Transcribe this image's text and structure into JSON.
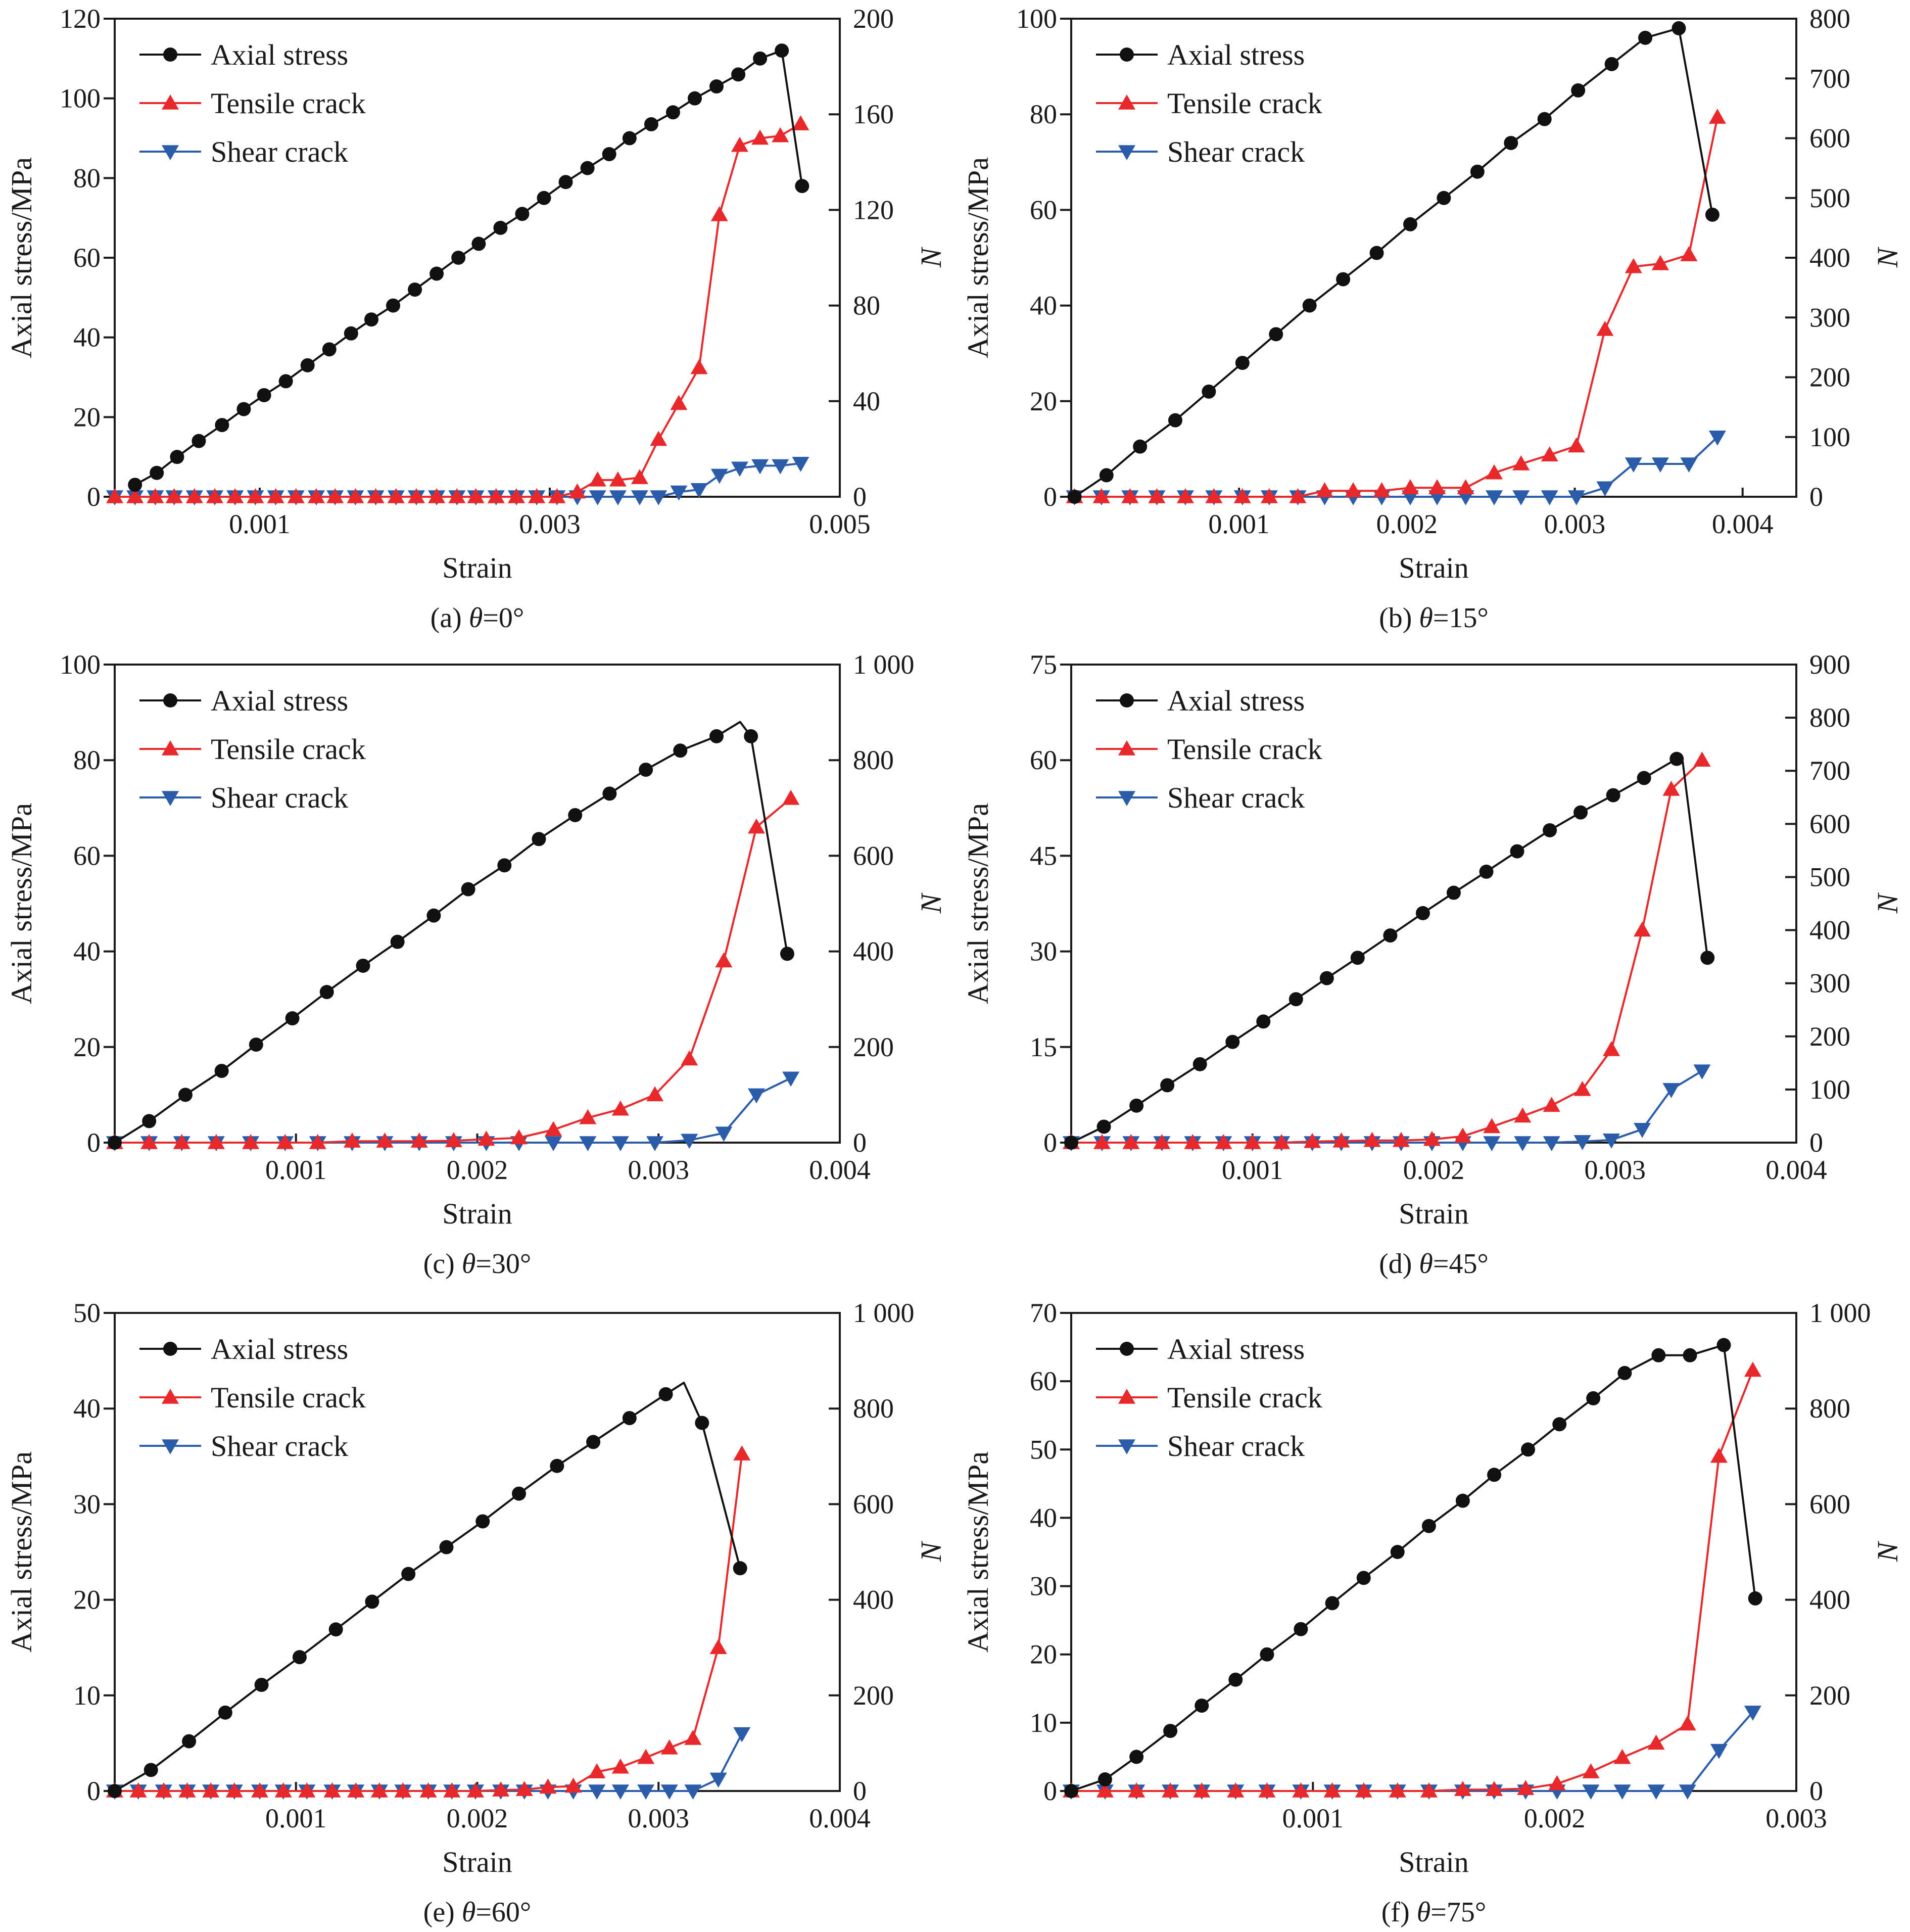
{
  "figure": {
    "xlabel": "Strain",
    "ylabel": "Axial stress/MPa",
    "y2label": "N",
    "theta_symbol": "θ",
    "legend": {
      "axial": "Axial stress",
      "tensile": "Tensile crack",
      "shear": "Shear crack"
    },
    "colors": {
      "axial": "#111111",
      "tensile": "#e8282b",
      "shear": "#2a5caa"
    },
    "markers": {
      "axial": "circle",
      "tensile": "triangle-up",
      "shear": "triangle-down"
    }
  },
  "chart_data": [
    {
      "type": "line",
      "caption_label": "(a)",
      "caption_value": "=0°",
      "xlim": [
        0,
        0.005
      ],
      "ylim": [
        0,
        120
      ],
      "y2lim": [
        0,
        200
      ],
      "xticks": [
        0.001,
        0.003,
        0.005
      ],
      "xtick_labels": [
        "0.001",
        "0.003",
        "0.005"
      ],
      "yticks": [
        0,
        20,
        40,
        60,
        80,
        100,
        120
      ],
      "ytick_labels": [
        "0",
        "20",
        "40",
        "60",
        "80",
        "100",
        "120"
      ],
      "y2ticks": [
        0,
        40,
        80,
        120,
        160,
        200
      ],
      "y2tick_labels": [
        "0",
        "40",
        "80",
        "120",
        "160",
        "200"
      ],
      "legend_position": "top-left",
      "grid": false,
      "axial": {
        "strain": [
          0.00014,
          0.00029,
          0.00043,
          0.00058,
          0.00074,
          0.00089,
          0.00103,
          0.00118,
          0.00133,
          0.00148,
          0.00163,
          0.00177,
          0.00192,
          0.00207,
          0.00222,
          0.00237,
          0.00251,
          0.00266,
          0.00281,
          0.00296,
          0.00311,
          0.00326,
          0.00341,
          0.00355,
          0.0037,
          0.00385,
          0.004,
          0.00415,
          0.0043,
          0.00445,
          0.0046,
          0.00474
        ],
        "stress": [
          3,
          6,
          10,
          14,
          18,
          22,
          25.5,
          29,
          33,
          37,
          41,
          44.5,
          48,
          52,
          56,
          60,
          63.5,
          67.5,
          71,
          75,
          79,
          82.5,
          86,
          90,
          93.5,
          96.5,
          100,
          103,
          106,
          110,
          112,
          78
        ]
      },
      "crack_strain": [
        0,
        0.00014,
        0.00028,
        0.00041,
        0.00055,
        0.00069,
        0.00083,
        0.00097,
        0.00111,
        0.00125,
        0.00139,
        0.00152,
        0.00166,
        0.0018,
        0.00194,
        0.00208,
        0.00222,
        0.00236,
        0.00249,
        0.00263,
        0.00277,
        0.00291,
        0.00305,
        0.00319,
        0.00333,
        0.00347,
        0.00362,
        0.00375,
        0.00389,
        0.00403,
        0.00417,
        0.00431,
        0.00445,
        0.00459,
        0.00473
      ],
      "tensile": [
        0,
        0,
        0,
        0,
        0,
        0,
        0,
        0,
        0,
        0,
        0,
        0,
        0,
        0,
        0,
        0,
        0,
        0,
        0,
        0,
        0,
        0,
        0,
        2,
        7,
        7,
        8,
        24,
        39,
        54,
        118,
        147,
        150,
        151,
        156
      ],
      "shear": [
        0,
        0,
        0,
        0,
        0,
        0,
        0,
        0,
        0,
        0,
        0,
        0,
        0,
        0,
        0,
        0,
        0,
        0,
        0,
        0,
        0,
        0,
        0,
        0,
        0,
        0,
        0,
        0,
        2,
        3,
        9,
        12,
        13,
        13,
        14
      ]
    },
    {
      "type": "line",
      "caption_label": "(b)",
      "caption_value": "=15°",
      "xlim": [
        0,
        0.00432
      ],
      "ylim": [
        0,
        100
      ],
      "y2lim": [
        0,
        800
      ],
      "xticks": [
        0.001,
        0.002,
        0.003,
        0.004
      ],
      "xtick_labels": [
        "0.001",
        "0.002",
        "0.003",
        "0.004"
      ],
      "yticks": [
        0,
        20,
        40,
        60,
        80,
        100
      ],
      "ytick_labels": [
        "0",
        "20",
        "40",
        "60",
        "80",
        "100"
      ],
      "y2ticks": [
        0,
        100,
        200,
        300,
        400,
        500,
        600,
        700,
        800
      ],
      "y2tick_labels": [
        "0",
        "100",
        "200",
        "300",
        "400",
        "500",
        "600",
        "700",
        "800"
      ],
      "legend_position": "top-left",
      "grid": false,
      "axial": {
        "strain": [
          2e-05,
          0.00021,
          0.00041,
          0.00062,
          0.00082,
          0.00102,
          0.00122,
          0.00142,
          0.00162,
          0.00182,
          0.00202,
          0.00222,
          0.00242,
          0.00262,
          0.00282,
          0.00302,
          0.00322,
          0.00342,
          0.00362,
          0.00382
        ],
        "stress": [
          0,
          4.5,
          10.5,
          16,
          22,
          28,
          34,
          40,
          45.5,
          51,
          57,
          62.5,
          68,
          74,
          79,
          85,
          90.5,
          96,
          98,
          59
        ]
      },
      "crack_strain": [
        2e-05,
        0.00018,
        0.00035,
        0.00051,
        0.00068,
        0.00085,
        0.00102,
        0.00118,
        0.00135,
        0.00151,
        0.00168,
        0.00185,
        0.00202,
        0.00218,
        0.00235,
        0.00252,
        0.00268,
        0.00285,
        0.00301,
        0.00318,
        0.00335,
        0.00351,
        0.00368,
        0.00385
      ],
      "tensile": [
        0,
        0,
        0,
        0,
        0,
        0,
        0,
        0,
        0,
        10,
        10,
        10,
        15,
        15,
        15,
        40,
        55,
        70,
        85,
        280,
        385,
        390,
        405,
        635
      ],
      "shear": [
        0,
        0,
        0,
        0,
        0,
        0,
        0,
        0,
        0,
        0,
        0,
        0,
        0,
        0,
        0,
        0,
        0,
        0,
        0,
        15,
        55,
        55,
        55,
        100
      ]
    },
    {
      "type": "line",
      "caption_label": "(c)",
      "caption_value": "=30°",
      "xlim": [
        0,
        0.004
      ],
      "ylim": [
        0,
        100
      ],
      "y2lim": [
        0,
        1000
      ],
      "xticks": [
        0.001,
        0.002,
        0.003,
        0.004
      ],
      "xtick_labels": [
        "0.001",
        "0.002",
        "0.003",
        "0.004"
      ],
      "yticks": [
        0,
        20,
        40,
        60,
        80,
        100
      ],
      "ytick_labels": [
        "0",
        "20",
        "40",
        "60",
        "80",
        "100"
      ],
      "y2ticks": [
        0,
        200,
        400,
        600,
        800,
        1000
      ],
      "y2tick_labels": [
        "0",
        "200",
        "400",
        "600",
        "800",
        "1 000"
      ],
      "legend_position": "top-left",
      "grid": false,
      "axial": {
        "strain": [
          0,
          0.00019,
          0.00039,
          0.00059,
          0.00078,
          0.00098,
          0.00117,
          0.00137,
          0.00156,
          0.00176,
          0.00195,
          0.00215,
          0.00234,
          0.00254,
          0.00273,
          0.00293,
          0.00312,
          0.00332,
          0.00351,
          0.00371
        ],
        "stress": [
          0,
          4.5,
          10,
          15,
          20.5,
          26,
          31.5,
          37,
          42,
          47.5,
          53,
          58,
          63.5,
          68.5,
          73,
          78,
          82,
          85,
          85,
          39.5
        ],
        "peak": [
          0.00345,
          88
        ]
      },
      "crack_strain": [
        0,
        0.00019,
        0.00037,
        0.00056,
        0.00075,
        0.00094,
        0.00112,
        0.00131,
        0.00149,
        0.00168,
        0.00187,
        0.00205,
        0.00223,
        0.00242,
        0.00261,
        0.00279,
        0.00298,
        0.00317,
        0.00336,
        0.00354,
        0.00373
      ],
      "tensile": [
        0,
        0,
        0,
        0,
        0,
        0,
        0,
        3,
        3,
        3,
        4,
        7,
        10,
        27,
        52,
        70,
        100,
        175,
        380,
        660,
        720
      ],
      "shear": [
        0,
        0,
        0,
        0,
        0,
        0,
        0,
        0,
        0,
        0,
        0,
        0,
        0,
        0,
        0,
        0,
        0,
        5,
        20,
        100,
        135
      ]
    },
    {
      "type": "line",
      "caption_label": "(d)",
      "caption_value": "=45°",
      "xlim": [
        0,
        0.004
      ],
      "ylim": [
        0,
        75
      ],
      "y2lim": [
        0,
        900
      ],
      "xticks": [
        0.001,
        0.002,
        0.003,
        0.004
      ],
      "xtick_labels": [
        "0.001",
        "0.002",
        "0.003",
        "0.004"
      ],
      "yticks": [
        0,
        15,
        30,
        45,
        60,
        75
      ],
      "ytick_labels": [
        "0",
        "15",
        "30",
        "45",
        "60",
        "75"
      ],
      "y2ticks": [
        0,
        100,
        200,
        300,
        400,
        500,
        600,
        700,
        800,
        900
      ],
      "y2tick_labels": [
        "0",
        "100",
        "200",
        "300",
        "400",
        "500",
        "600",
        "700",
        "800",
        "900"
      ],
      "legend_position": "top-left",
      "grid": false,
      "axial": {
        "strain": [
          0,
          0.00018,
          0.00036,
          0.00053,
          0.00071,
          0.00089,
          0.00106,
          0.00124,
          0.00141,
          0.00158,
          0.00176,
          0.00194,
          0.00211,
          0.00229,
          0.00246,
          0.00264,
          0.00281,
          0.00299,
          0.00316,
          0.00334,
          0.00351
        ],
        "stress": [
          0,
          2.5,
          5.8,
          9,
          12.3,
          15.8,
          19,
          22.5,
          25.8,
          29,
          32.5,
          36,
          39.2,
          42.5,
          45.7,
          49,
          51.8,
          54.5,
          57.2,
          60.2,
          29
        ],
        "peak": [
          0.00337,
          60.5
        ]
      },
      "crack_strain": [
        0,
        0.00017,
        0.00033,
        0.0005,
        0.00067,
        0.00084,
        0.001,
        0.00116,
        0.00133,
        0.00149,
        0.00166,
        0.00182,
        0.00199,
        0.00216,
        0.00232,
        0.00249,
        0.00265,
        0.00282,
        0.00298,
        0.00315,
        0.00331,
        0.00348
      ],
      "tensile": [
        0,
        0,
        0,
        0,
        0,
        0,
        0,
        0,
        2,
        3,
        4,
        4,
        6,
        12,
        30,
        50,
        70,
        100,
        175,
        400,
        665,
        720
      ],
      "shear": [
        0,
        0,
        0,
        0,
        0,
        0,
        0,
        0,
        0,
        0,
        0,
        0,
        0,
        0,
        0,
        0,
        0,
        2,
        5,
        25,
        100,
        135
      ]
    },
    {
      "type": "line",
      "caption_label": "(e)",
      "caption_value": "=60°",
      "xlim": [
        0,
        0.004
      ],
      "ylim": [
        0,
        50
      ],
      "y2lim": [
        0,
        1000
      ],
      "xticks": [
        0.001,
        0.002,
        0.003,
        0.004
      ],
      "xtick_labels": [
        "0.001",
        "0.002",
        "0.003",
        "0.004"
      ],
      "yticks": [
        0,
        10,
        20,
        30,
        40,
        50
      ],
      "ytick_labels": [
        "0",
        "10",
        "20",
        "30",
        "40",
        "50"
      ],
      "y2ticks": [
        0,
        200,
        400,
        600,
        800,
        1000
      ],
      "y2tick_labels": [
        "0",
        "200",
        "400",
        "600",
        "800",
        "1 000"
      ],
      "legend_position": "top-left",
      "grid": false,
      "axial": {
        "strain": [
          0,
          0.0002,
          0.00041,
          0.00061,
          0.00081,
          0.00102,
          0.00122,
          0.00142,
          0.00162,
          0.00183,
          0.00203,
          0.00223,
          0.00244,
          0.00264,
          0.00284,
          0.00304,
          0.00324,
          0.00345
        ],
        "stress": [
          0,
          2.2,
          5.2,
          8.2,
          11.1,
          14,
          16.9,
          19.8,
          22.7,
          25.5,
          28.2,
          31.1,
          34,
          36.5,
          39,
          41.5,
          38.5,
          23.3
        ],
        "peak": [
          0.00314,
          42.7
        ]
      },
      "crack_strain": [
        0,
        0.00013,
        0.00027,
        0.0004,
        0.00053,
        0.00066,
        0.0008,
        0.00093,
        0.00106,
        0.0012,
        0.00133,
        0.00146,
        0.00159,
        0.00173,
        0.00186,
        0.00199,
        0.00213,
        0.00226,
        0.00239,
        0.00253,
        0.00266,
        0.00279,
        0.00293,
        0.00306,
        0.00319,
        0.00333,
        0.00346
      ],
      "tensile": [
        0,
        0,
        0,
        0,
        0,
        0,
        0,
        0,
        0,
        0,
        0,
        0,
        0,
        0,
        0,
        0,
        2,
        3,
        8,
        10,
        40,
        50,
        70,
        90,
        110,
        300,
        705
      ],
      "shear": [
        0,
        0,
        0,
        0,
        0,
        0,
        0,
        0,
        0,
        0,
        0,
        0,
        0,
        0,
        0,
        0,
        0,
        0,
        0,
        0,
        0,
        0,
        0,
        0,
        0,
        25,
        120
      ]
    },
    {
      "type": "line",
      "caption_label": "(f)",
      "caption_value": "=75°",
      "xlim": [
        0,
        0.003
      ],
      "ylim": [
        0,
        70
      ],
      "y2lim": [
        0,
        1000
      ],
      "xticks": [
        0.001,
        0.002,
        0.003
      ],
      "xtick_labels": [
        "0.001",
        "0.002",
        "0.003"
      ],
      "yticks": [
        0,
        10,
        20,
        30,
        40,
        50,
        60,
        70
      ],
      "ytick_labels": [
        "0",
        "10",
        "20",
        "30",
        "40",
        "50",
        "60",
        "70"
      ],
      "y2ticks": [
        0,
        200,
        400,
        600,
        800,
        1000
      ],
      "y2tick_labels": [
        "0",
        "200",
        "400",
        "600",
        "800",
        "1 000"
      ],
      "legend_position": "top-left",
      "grid": false,
      "axial": {
        "strain": [
          0,
          0.00014,
          0.00027,
          0.00041,
          0.00054,
          0.00068,
          0.00081,
          0.00095,
          0.00108,
          0.00121,
          0.00135,
          0.00148,
          0.00162,
          0.00175,
          0.00189,
          0.00202,
          0.00216,
          0.00229,
          0.00243,
          0.00256,
          0.0027,
          0.00283
        ],
        "stress": [
          0,
          1.7,
          5,
          8.8,
          12.5,
          16.3,
          20,
          23.7,
          27.5,
          31.2,
          35,
          38.8,
          42.5,
          46.3,
          50,
          53.7,
          57.5,
          61.2,
          63.8,
          63.8,
          65.3,
          28.2
        ]
      },
      "crack_strain": [
        0,
        0.00014,
        0.00027,
        0.00041,
        0.00054,
        0.00068,
        0.00081,
        0.00095,
        0.00108,
        0.00121,
        0.00135,
        0.00148,
        0.00162,
        0.00175,
        0.00188,
        0.00201,
        0.00215,
        0.00228,
        0.00242,
        0.00255,
        0.00268,
        0.00282
      ],
      "tensile": [
        0,
        0,
        0,
        0,
        0,
        0,
        0,
        0,
        0,
        0,
        0,
        0,
        3,
        3,
        5,
        15,
        40,
        70,
        100,
        140,
        700,
        880
      ],
      "shear": [
        0,
        0,
        0,
        0,
        0,
        0,
        0,
        0,
        0,
        0,
        0,
        0,
        0,
        0,
        0,
        0,
        0,
        0,
        0,
        0,
        85,
        165
      ]
    }
  ]
}
